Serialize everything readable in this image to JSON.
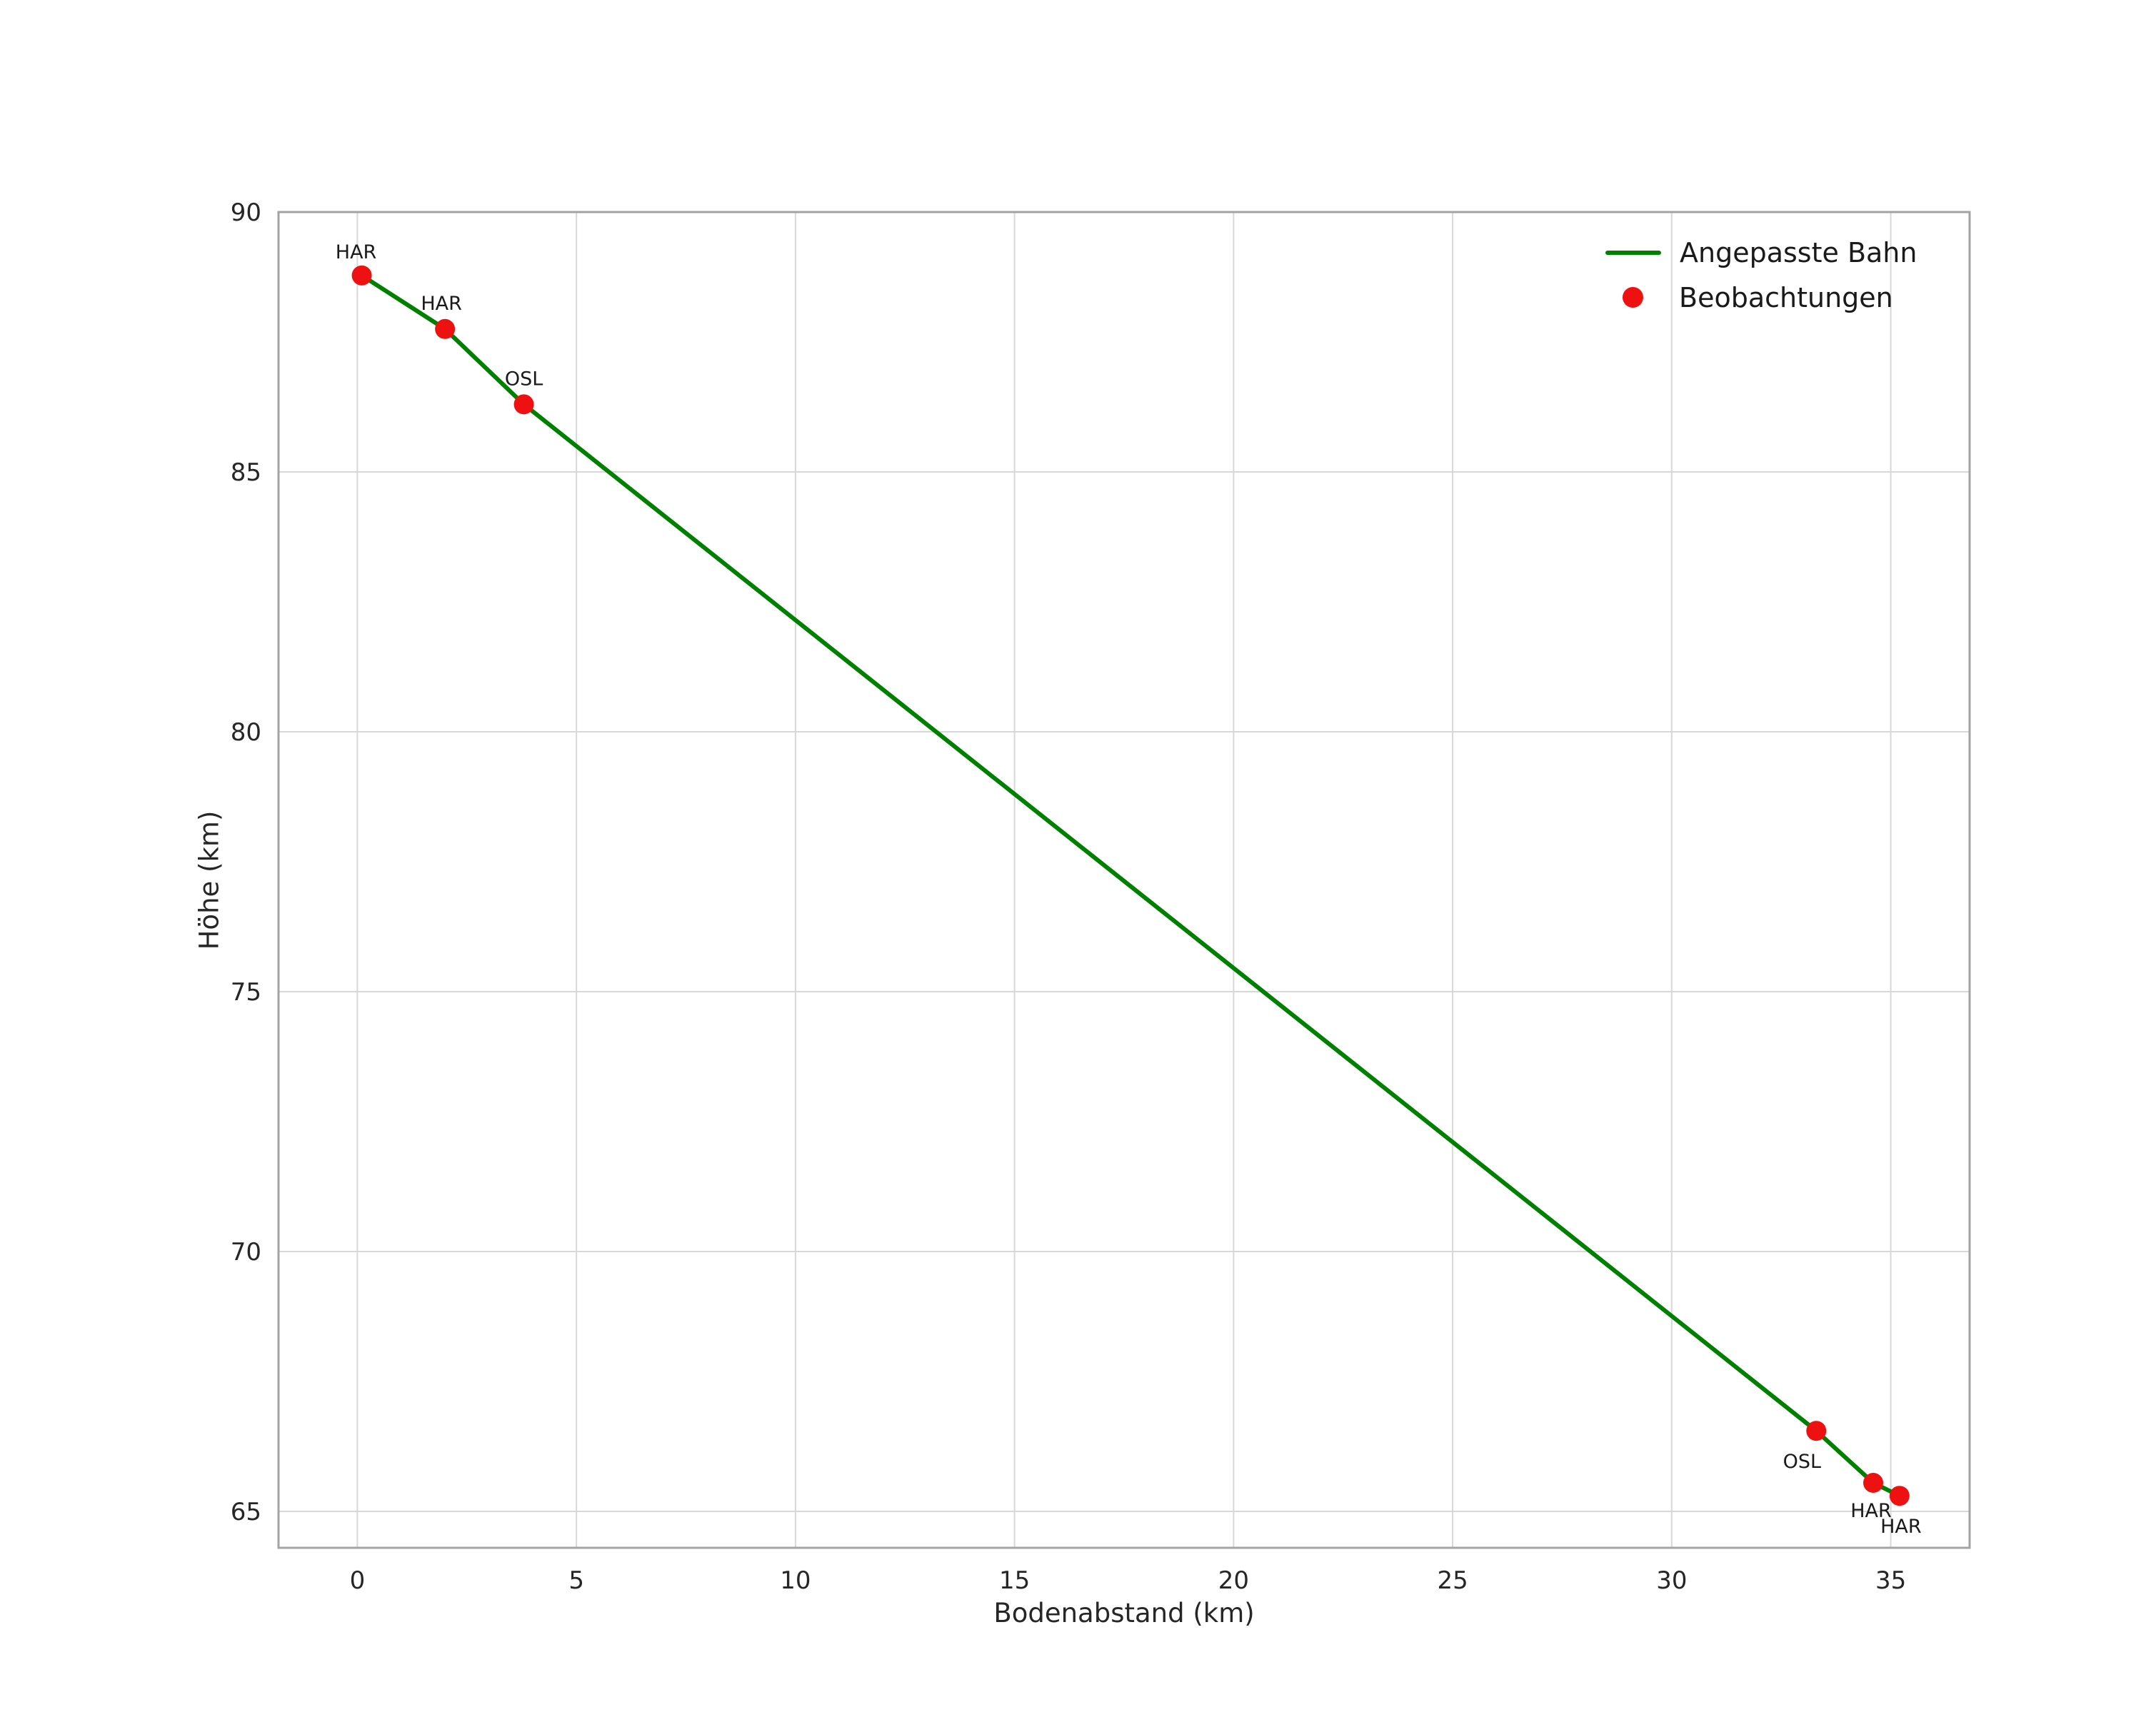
{
  "chart_data": {
    "type": "line",
    "title": "",
    "xlabel": "Bodenabstand (km)",
    "ylabel": "Höhe (km)",
    "xlim": [
      -1.8,
      36.8
    ],
    "ylim": [
      64.3,
      90
    ],
    "xticks": [
      0,
      5,
      10,
      15,
      20,
      25,
      30,
      35
    ],
    "yticks": [
      65,
      70,
      75,
      80,
      85,
      90
    ],
    "grid": true,
    "colors": {
      "line": "#008000",
      "points": "#ee1111",
      "grid": "#d8d8d8",
      "border": "#a3a3a3",
      "text": "#262626",
      "point_label": "#1a1a1a"
    },
    "legend": {
      "position": "upper right",
      "entries": [
        {
          "label": "Angepasste Bahn",
          "marker": "line",
          "color": "#008000"
        },
        {
          "label": "Beobachtungen",
          "marker": "point",
          "color": "#ee1111"
        }
      ]
    },
    "series": [
      {
        "name": "Angepasste Bahn",
        "type": "line",
        "color": "#008000",
        "x": [
          0.1,
          2.0,
          3.8,
          33.3,
          34.6,
          35.2
        ],
        "y": [
          88.78,
          87.75,
          86.3,
          66.55,
          65.55,
          65.3
        ]
      },
      {
        "name": "Beobachtungen",
        "type": "scatter",
        "color": "#ee1111",
        "points": [
          {
            "x": 0.1,
            "y": 88.78,
            "label": "HAR",
            "label_dx": -8,
            "label_dy": -24
          },
          {
            "x": 2.0,
            "y": 87.75,
            "label": "HAR",
            "label_dx": -5,
            "label_dy": -27
          },
          {
            "x": 3.8,
            "y": 86.3,
            "label": "OSL",
            "label_dx": 0,
            "label_dy": -27
          },
          {
            "x": 33.3,
            "y": 66.55,
            "label": "OSL",
            "label_dx": -20,
            "label_dy": 52
          },
          {
            "x": 34.6,
            "y": 65.55,
            "label": "HAR",
            "label_dx": -3,
            "label_dy": 48
          },
          {
            "x": 35.2,
            "y": 65.3,
            "label": "HAR",
            "label_dx": 2,
            "label_dy": 52
          }
        ]
      }
    ]
  }
}
